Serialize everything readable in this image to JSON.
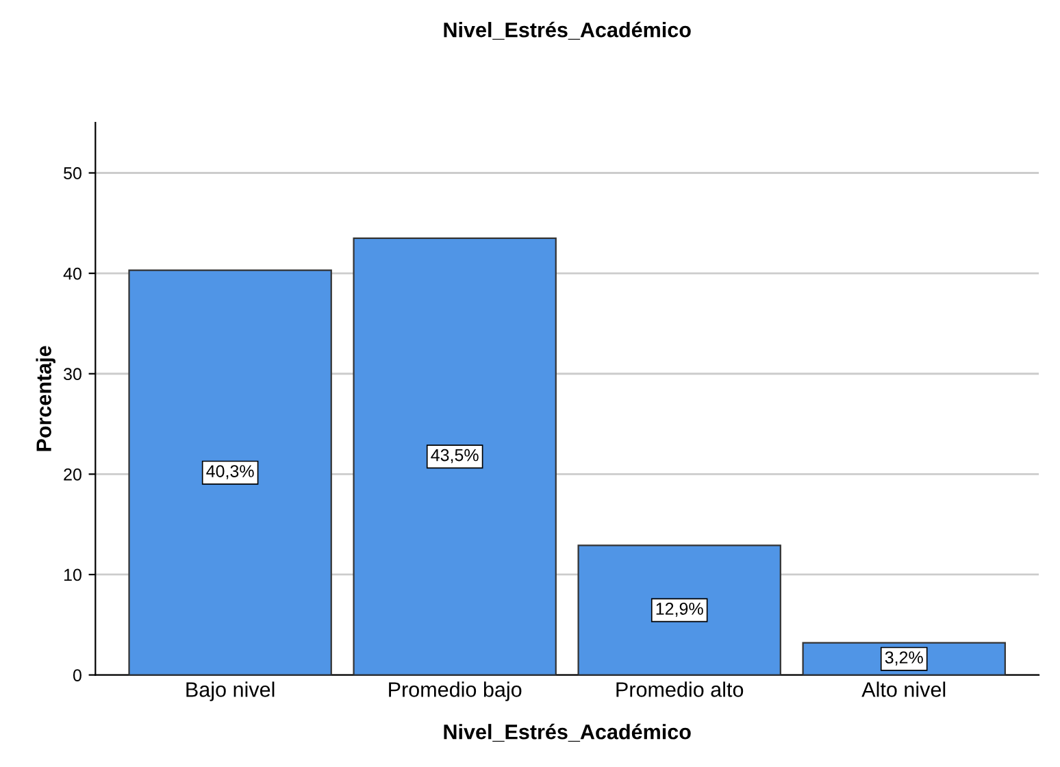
{
  "chart_data": {
    "type": "bar",
    "title": "Nivel_Estrés_Académico",
    "xlabel": "Nivel_Estrés_Académico",
    "ylabel": "Porcentaje",
    "categories": [
      "Bajo nivel",
      "Promedio bajo",
      "Promedio alto",
      "Alto nivel"
    ],
    "values": [
      40.3,
      43.5,
      12.9,
      3.2
    ],
    "value_labels": [
      "40,3%",
      "43,5%",
      "12,9%",
      "3,2%"
    ],
    "color": "#5095e6",
    "ylim": [
      0,
      55
    ],
    "yticks": [
      0,
      10,
      20,
      30,
      40,
      50
    ],
    "grid": "y"
  }
}
